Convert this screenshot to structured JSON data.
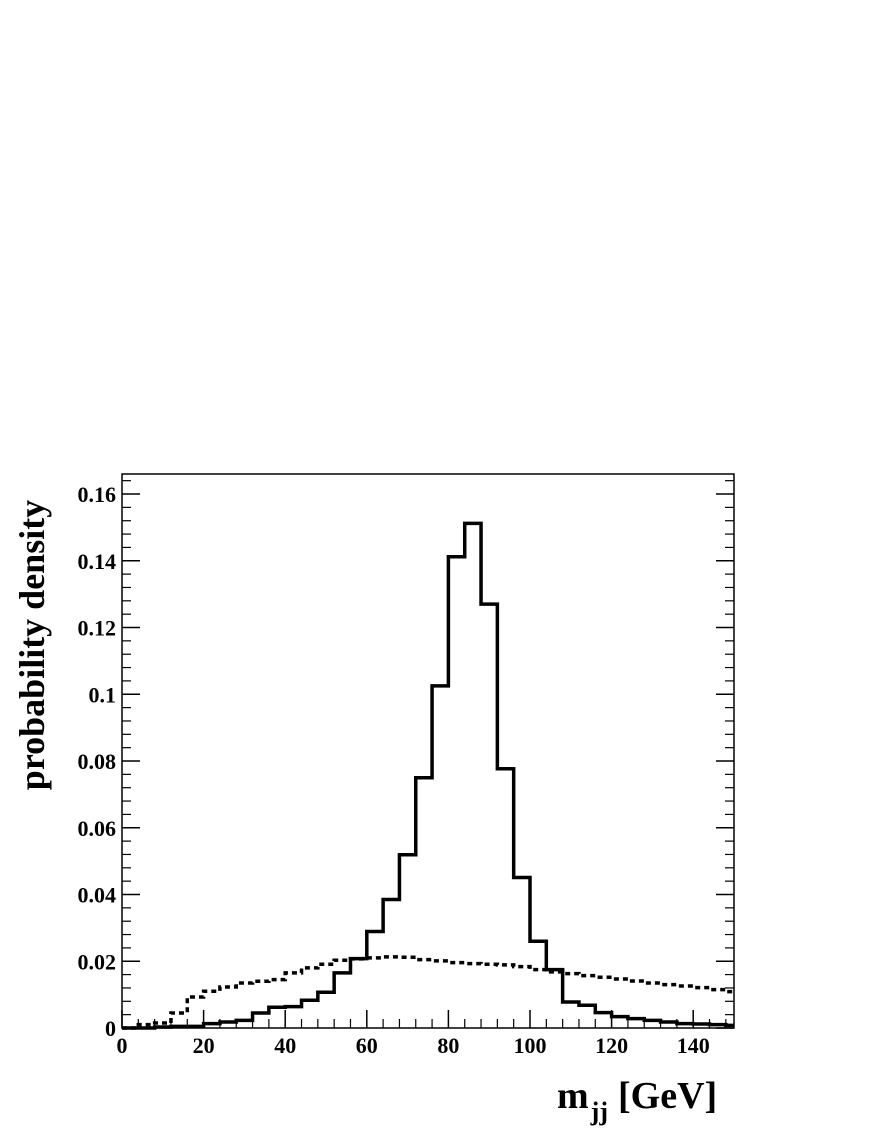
{
  "chart_data": {
    "type": "histogram",
    "title": "",
    "xlabel": "m",
    "xlabel_subscript": "jj",
    "xlabel_unit": "[GeV]",
    "ylabel": "probability density",
    "xlim": [
      0,
      150
    ],
    "ylim": [
      0,
      0.166
    ],
    "grid": false,
    "bin_width": 4,
    "bin_edges_start": 0,
    "x_ticks": [
      0,
      20,
      40,
      60,
      80,
      100,
      120,
      140
    ],
    "x_tick_labels": [
      "0",
      "20",
      "40",
      "60",
      "80",
      "100",
      "120",
      "140"
    ],
    "y_ticks": [
      0,
      0.02,
      0.04,
      0.06,
      0.08,
      0.1,
      0.12,
      0.14,
      0.16
    ],
    "y_tick_labels": [
      "0",
      "0.02",
      "0.04",
      "0.06",
      "0.08",
      "0.1",
      "0.12",
      "0.14",
      "0.16"
    ],
    "series": [
      {
        "line_style": "solid",
        "values": [
          0.0,
          0.0,
          0.0003,
          0.0005,
          0.0005,
          0.0013,
          0.0018,
          0.0023,
          0.0045,
          0.0062,
          0.0064,
          0.0083,
          0.0107,
          0.0165,
          0.0208,
          0.0289,
          0.0385,
          0.0519,
          0.075,
          0.1025,
          0.1412,
          0.1512,
          0.127,
          0.0777,
          0.0451,
          0.026,
          0.0175,
          0.0078,
          0.0068,
          0.0046,
          0.0034,
          0.0028,
          0.0023,
          0.0018,
          0.0013,
          0.0012,
          0.001,
          0.0008
        ]
      },
      {
        "line_style": "dashed",
        "values": [
          0.0,
          0.001,
          0.0015,
          0.0045,
          0.0093,
          0.011,
          0.0123,
          0.0135,
          0.014,
          0.0145,
          0.0165,
          0.018,
          0.0191,
          0.0203,
          0.0207,
          0.021,
          0.0213,
          0.0212,
          0.0205,
          0.0201,
          0.0196,
          0.0193,
          0.0191,
          0.0189,
          0.0184,
          0.0175,
          0.0168,
          0.0163,
          0.0157,
          0.0152,
          0.0147,
          0.0141,
          0.0135,
          0.013,
          0.0126,
          0.0121,
          0.0115,
          0.0109
        ]
      }
    ]
  }
}
